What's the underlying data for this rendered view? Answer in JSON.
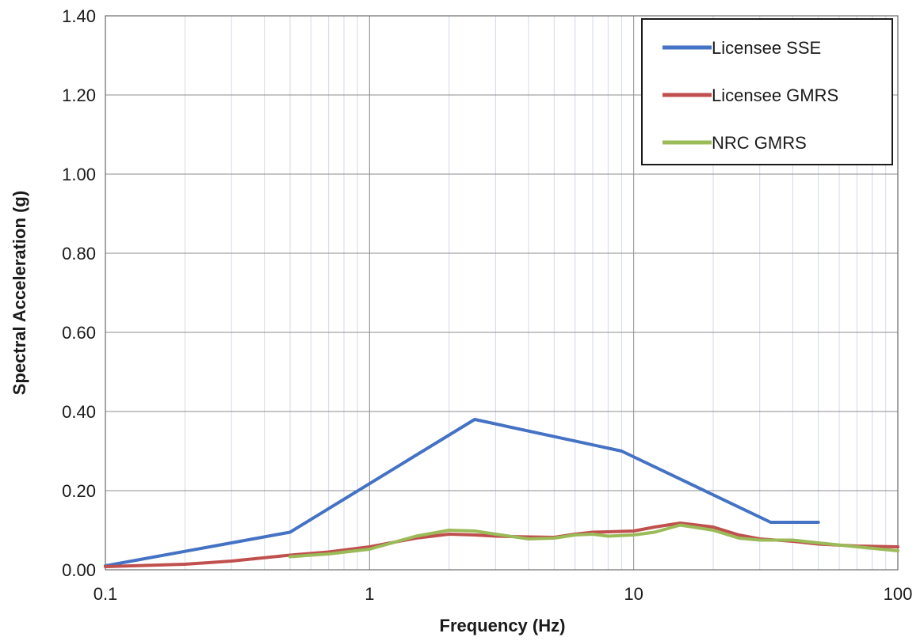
{
  "chart_data": {
    "type": "line",
    "title": "",
    "xlabel": "Frequency (Hz)",
    "ylabel": "Spectral Acceleration (g)",
    "x_scale": "log",
    "xlim": [
      0.1,
      100
    ],
    "ylim": [
      0,
      1.4
    ],
    "x_ticks": [
      0.1,
      1,
      10,
      100
    ],
    "x_tick_labels": [
      "0.1",
      "1",
      "10",
      "100"
    ],
    "y_ticks": [
      0,
      0.2,
      0.4,
      0.6,
      0.8,
      1.0,
      1.2,
      1.4
    ],
    "y_tick_labels": [
      "0.00",
      "0.20",
      "0.40",
      "0.60",
      "0.80",
      "1.00",
      "1.20",
      "1.40"
    ],
    "grid": true,
    "minor_x_grid": true,
    "legend_position": "top-right",
    "series": [
      {
        "name": "Licensee SSE",
        "color": "#4472C4",
        "x": [
          0.1,
          0.5,
          2.5,
          9,
          33,
          50
        ],
        "y": [
          0.01,
          0.095,
          0.38,
          0.3,
          0.12,
          0.12
        ]
      },
      {
        "name": "Licensee GMRS",
        "color": "#C0504D",
        "x": [
          0.1,
          0.2,
          0.3,
          0.5,
          0.7,
          1,
          1.5,
          2,
          2.5,
          3,
          4,
          5,
          6,
          7,
          8,
          10,
          12,
          15,
          20,
          25,
          30,
          40,
          50,
          70,
          100
        ],
        "y": [
          0.008,
          0.014,
          0.022,
          0.037,
          0.045,
          0.058,
          0.08,
          0.09,
          0.088,
          0.085,
          0.083,
          0.082,
          0.09,
          0.095,
          0.096,
          0.098,
          0.108,
          0.118,
          0.108,
          0.088,
          0.078,
          0.072,
          0.065,
          0.06,
          0.058
        ]
      },
      {
        "name": "NRC GMRS",
        "color": "#9BBB59",
        "x": [
          0.5,
          0.7,
          1,
          1.5,
          2,
          2.5,
          3,
          4,
          5,
          6,
          7,
          8,
          10,
          12,
          15,
          20,
          25,
          30,
          40,
          50,
          70,
          100
        ],
        "y": [
          0.033,
          0.04,
          0.052,
          0.085,
          0.1,
          0.098,
          0.09,
          0.078,
          0.08,
          0.088,
          0.09,
          0.085,
          0.088,
          0.095,
          0.113,
          0.1,
          0.08,
          0.075,
          0.075,
          0.068,
          0.058,
          0.048
        ]
      }
    ]
  }
}
